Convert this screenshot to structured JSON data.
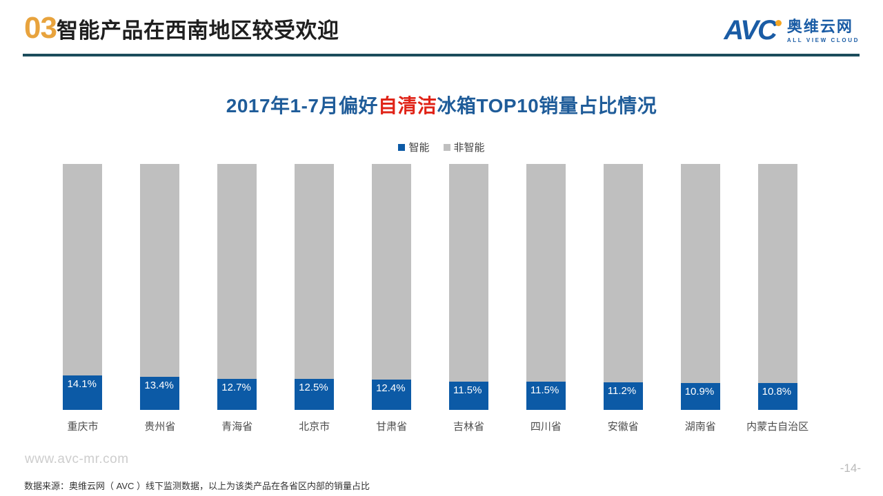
{
  "header": {
    "number": "03",
    "title": "智能产品在西南地区较受欢迎"
  },
  "logo": {
    "wordmark": "AVC",
    "name_cn": "奥维云网",
    "name_en": "ALL VIEW CLOUD",
    "brand_blue": "#1A5CA5",
    "dot_orange": "#F5A623"
  },
  "chart_title": {
    "prefix": "2017年1-7月偏好",
    "highlight": "自清洁",
    "suffix": "冰箱TOP10销量占比情况",
    "title_color": "#1F5C99",
    "highlight_color": "#E02418"
  },
  "legend": [
    {
      "label": "智能",
      "color": "#0C5AA6"
    },
    {
      "label": "非智能",
      "color": "#BFBFBF"
    }
  ],
  "chart_data": {
    "type": "bar",
    "stacked": true,
    "stacked_total": 100,
    "title": "2017年1-7月偏好自清洁冰箱TOP10销量占比情况",
    "xlabel": "",
    "ylabel": "",
    "ylim": [
      0,
      100
    ],
    "grid": false,
    "legend_position": "top-center",
    "categories": [
      "重庆市",
      "贵州省",
      "青海省",
      "北京市",
      "甘肃省",
      "吉林省",
      "四川省",
      "安徽省",
      "湖南省",
      "内蒙古自治区"
    ],
    "series": [
      {
        "name": "智能",
        "color": "#0C5AA6",
        "values": [
          14.1,
          13.4,
          12.7,
          12.5,
          12.4,
          11.5,
          11.5,
          11.2,
          10.9,
          10.8
        ],
        "labels": [
          "14.1%",
          "13.4%",
          "12.7%",
          "12.5%",
          "12.4%",
          "11.5%",
          "11.5%",
          "11.2%",
          "10.9%",
          "10.8%"
        ]
      },
      {
        "name": "非智能",
        "color": "#BFBFBF",
        "values": [
          85.9,
          86.6,
          87.3,
          87.5,
          87.6,
          88.5,
          88.5,
          88.8,
          89.1,
          89.2
        ],
        "labels": []
      }
    ]
  },
  "footer": {
    "website": "www.avc-mr.com",
    "page": "-14-",
    "source": "数据来源：奥维云网（ AVC ）线下监测数据，以上为该类产品在各省区内部的销量占比"
  }
}
